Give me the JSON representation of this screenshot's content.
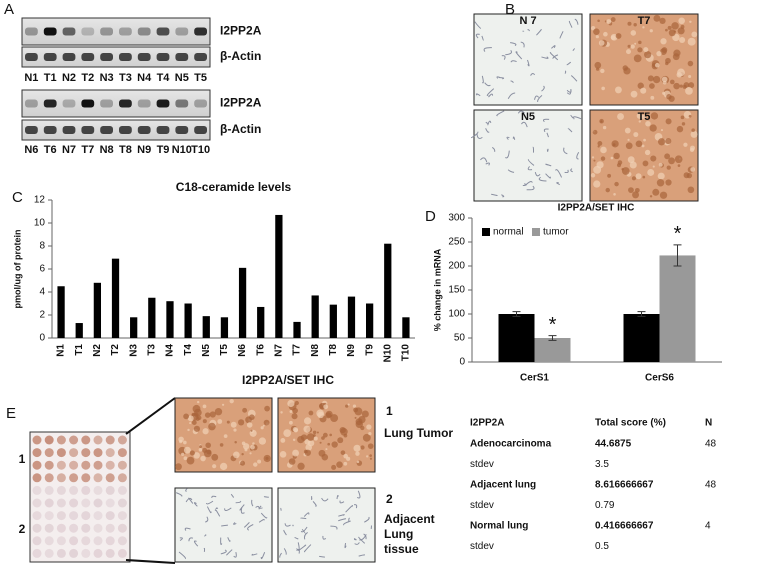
{
  "panel_labels": [
    "A",
    "B",
    "C",
    "D",
    "E"
  ],
  "blots": [
    {
      "lanes": [
        "N1",
        "T1",
        "N2",
        "T2",
        "N3",
        "T3",
        "N4",
        "T4",
        "N5",
        "T5"
      ],
      "rows": [
        "I2PP2A",
        "β-Actin"
      ]
    },
    {
      "lanes": [
        "N6",
        "T6",
        "N7",
        "T7",
        "N8",
        "T8",
        "N9",
        "T9",
        "N10",
        "T10"
      ],
      "rows": [
        "I2PP2A",
        "β-Actin"
      ]
    }
  ],
  "ihc_b": {
    "images": [
      "N 7",
      "T7",
      "N5",
      "T5"
    ],
    "caption": "I2PP2A/SET IHC"
  },
  "chart_data": [
    {
      "type": "bar",
      "title": "C18-ceramide levels",
      "y_label": "pmol/ug of protein",
      "categories": [
        "N1",
        "T1",
        "N2",
        "T2",
        "N3",
        "T3",
        "N4",
        "T4",
        "N5",
        "T5",
        "N6",
        "T6",
        "N7",
        "T7",
        "N8",
        "T8",
        "N9",
        "T9",
        "N10",
        "T10"
      ],
      "values": [
        4.5,
        1.3,
        4.8,
        6.9,
        1.8,
        3.5,
        3.2,
        3.0,
        1.9,
        1.8,
        6.1,
        2.7,
        10.7,
        1.4,
        3.7,
        2.9,
        3.6,
        3.0,
        8.2,
        1.8
      ],
      "color": "#000000",
      "ylim": [
        0,
        12
      ],
      "yticks": [
        0,
        2,
        4,
        6,
        8,
        10,
        12
      ],
      "grid": false
    },
    {
      "type": "grouped_bar",
      "y_label": "% change in mRNA",
      "categories": [
        "CerS1",
        "CerS6"
      ],
      "series": [
        {
          "name": "normal",
          "color": "#000000",
          "values": [
            100,
            100
          ],
          "errors": [
            5,
            5
          ]
        },
        {
          "name": "tumor",
          "color": "#999999",
          "values": [
            50,
            222
          ],
          "errors": [
            5,
            22
          ]
        }
      ],
      "annotations": [
        "*",
        "*"
      ],
      "ylim": [
        0,
        300
      ],
      "yticks": [
        0,
        50,
        100,
        150,
        200,
        250,
        300
      ],
      "grid": false,
      "legend": "top-left"
    }
  ],
  "panel_e": {
    "title": "I2PP2A/SET IHC",
    "array_labels": [
      "1",
      "2"
    ],
    "row_labels": [
      {
        "number": "1",
        "text": "Lung Tumor"
      },
      {
        "number": "2",
        "text": "Adjacent Lung tissue"
      }
    ]
  },
  "table": {
    "header": [
      "I2PP2A",
      "Total score (%)",
      "N"
    ],
    "rows": [
      {
        "label": "Adenocarcinoma",
        "score": 44.6875,
        "n": 48
      },
      {
        "label": "stdev",
        "score": 3.5
      },
      {
        "label": "Adjacent lung",
        "score": 8.616666667,
        "n": 48
      },
      {
        "label": "stdev",
        "score": 0.79
      },
      {
        "label": "Normal lung",
        "score": 0.416666667,
        "n": 4
      },
      {
        "label": "stdev",
        "score": 0.5
      }
    ]
  }
}
